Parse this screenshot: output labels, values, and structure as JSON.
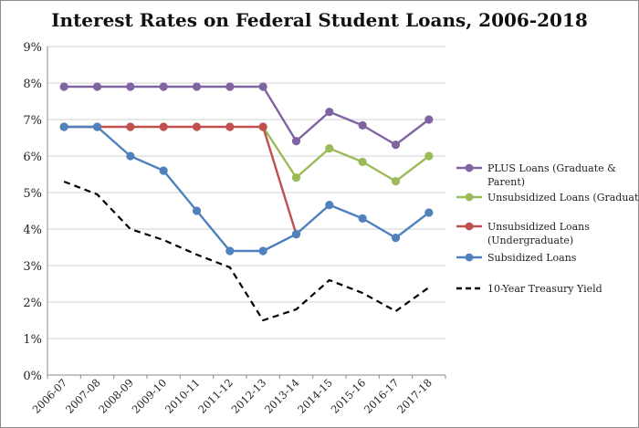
{
  "chart_data": {
    "type": "line",
    "title": "Interest Rates on Federal Student Loans, 2006-2018",
    "xlabel": "",
    "ylabel": "",
    "ylim": [
      0,
      9
    ],
    "yticks": [
      "0%",
      "1%",
      "2%",
      "3%",
      "4%",
      "5%",
      "6%",
      "7%",
      "8%",
      "9%"
    ],
    "categories": [
      "2006-07",
      "2007-08",
      "2008-09",
      "2009-10",
      "2010-11",
      "2011-12",
      "2012-13",
      "2013-14",
      "2014-15",
      "2015-16",
      "2016-17",
      "2017-18"
    ],
    "legend_position": "right",
    "series": [
      {
        "name": "PLUS Loans (Graduate & Parent)",
        "legend_lines": [
          "PLUS Loans (Graduate &",
          "Parent)"
        ],
        "color": "#8064a2",
        "style": "solid",
        "marker": true,
        "values": [
          7.9,
          7.9,
          7.9,
          7.9,
          7.9,
          7.9,
          7.9,
          6.41,
          7.21,
          6.84,
          6.31,
          7.0
        ]
      },
      {
        "name": "Unsubsidized Loans (Graduate)",
        "legend_lines": [
          "Unsubsidized Loans (Graduate)"
        ],
        "color": "#9bbb59",
        "style": "solid",
        "marker": true,
        "values": [
          null,
          null,
          null,
          null,
          null,
          null,
          6.8,
          5.41,
          6.21,
          5.84,
          5.31,
          6.0
        ]
      },
      {
        "name": "Unsubsidized Loans (Undergraduate)",
        "legend_lines": [
          "Unsubsidized Loans",
          "(Undergraduate)"
        ],
        "color": "#c0504d",
        "style": "solid",
        "marker": true,
        "values": [
          6.8,
          6.8,
          6.8,
          6.8,
          6.8,
          6.8,
          6.8,
          3.86,
          null,
          null,
          null,
          null
        ]
      },
      {
        "name": "Subsidized Loans",
        "legend_lines": [
          "Subsidized Loans"
        ],
        "color": "#4f81bd",
        "style": "solid",
        "marker": true,
        "values": [
          6.8,
          6.8,
          6.0,
          5.6,
          4.5,
          3.4,
          3.4,
          3.86,
          4.66,
          4.29,
          3.76,
          4.45
        ]
      },
      {
        "name": "10-Year Treasury Yield",
        "legend_lines": [
          "10-Year Treasury Yield"
        ],
        "color": "#000000",
        "style": "dashed",
        "marker": false,
        "values": [
          5.3,
          4.95,
          4.0,
          3.7,
          3.3,
          2.95,
          1.5,
          1.8,
          2.6,
          2.25,
          1.75,
          2.4
        ]
      }
    ]
  }
}
